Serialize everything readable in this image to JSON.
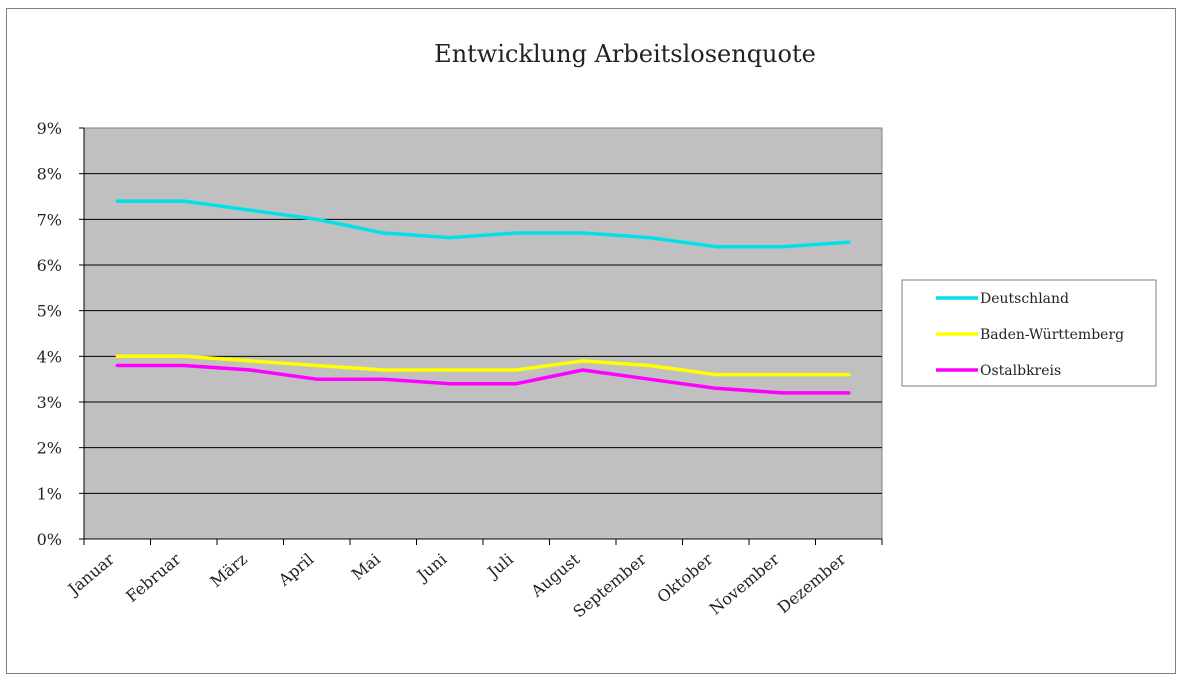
{
  "chart_data": {
    "type": "line",
    "title": "Entwicklung Arbeitslosenquote",
    "xlabel": "",
    "ylabel": "",
    "categories": [
      "Januar",
      "Februar",
      "März",
      "April",
      "Mai",
      "Juni",
      "Juli",
      "August",
      "September",
      "Oktober",
      "November",
      "Dezember"
    ],
    "ylim": [
      0,
      9
    ],
    "yticks": [
      "0%",
      "1%",
      "2%",
      "3%",
      "4%",
      "5%",
      "6%",
      "7%",
      "8%",
      "9%"
    ],
    "grid": true,
    "legend_position": "right",
    "plot_background": "#c0c0c0",
    "series": [
      {
        "name": "Deutschland",
        "color": "#00e0e8",
        "values": [
          7.4,
          7.4,
          7.2,
          7.0,
          6.7,
          6.6,
          6.7,
          6.7,
          6.6,
          6.4,
          6.4,
          6.5
        ]
      },
      {
        "name": "Baden-Württemberg",
        "color": "#ffff00",
        "values": [
          4.0,
          4.0,
          3.9,
          3.8,
          3.7,
          3.7,
          3.7,
          3.9,
          3.8,
          3.6,
          3.6,
          3.6
        ]
      },
      {
        "name": "Ostalbkreis",
        "color": "#ff00ff",
        "values": [
          3.8,
          3.8,
          3.7,
          3.5,
          3.5,
          3.4,
          3.4,
          3.7,
          3.5,
          3.3,
          3.2,
          3.2
        ]
      }
    ]
  }
}
